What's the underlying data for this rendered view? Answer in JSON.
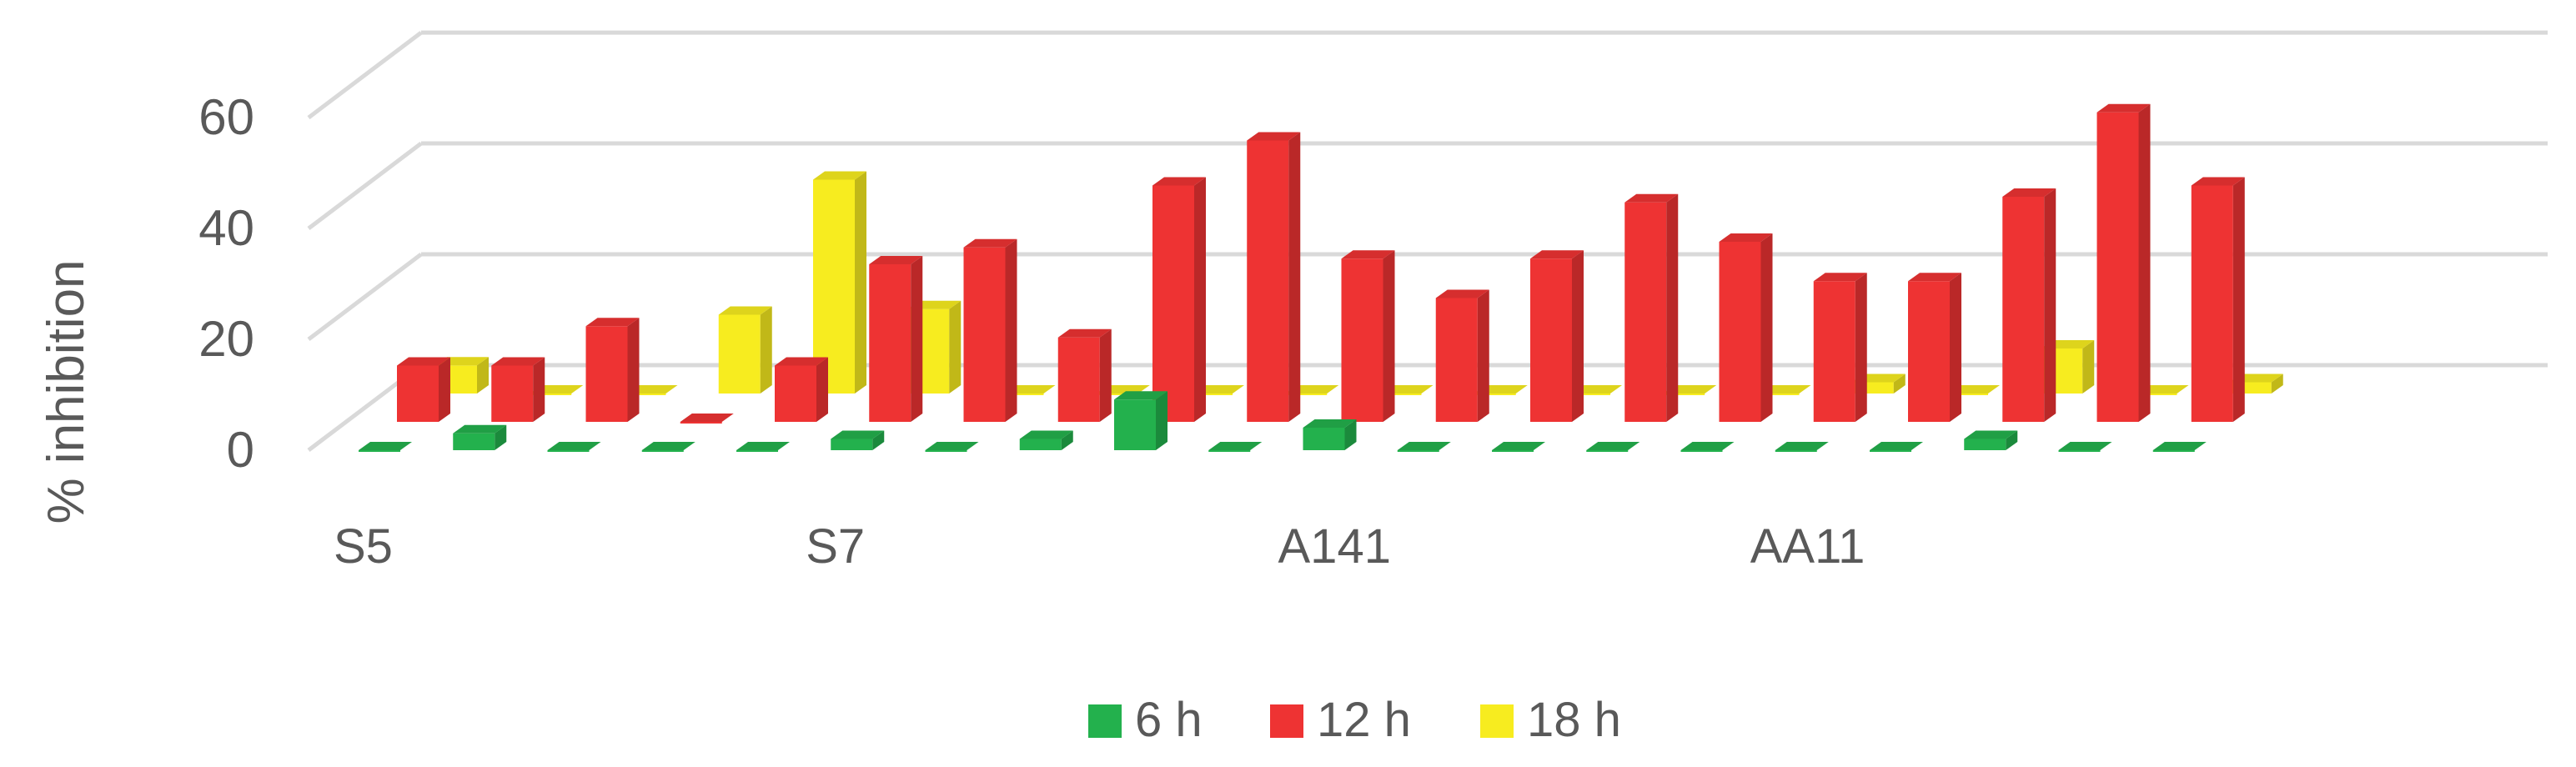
{
  "chart_data": {
    "type": "bar",
    "variant": "3d-clustered-column",
    "ylabel": "% inhibition",
    "ylim": [
      0,
      60
    ],
    "yticks": [
      0,
      20,
      40,
      60
    ],
    "category_labels_shown": [
      "S5",
      "S7",
      "A141",
      "AA11"
    ],
    "category_count": 20,
    "category_label_positions": [
      0,
      5,
      10,
      15
    ],
    "grid": true,
    "legend_position": "bottom",
    "series": [
      {
        "name": "6 h",
        "color": "#23b14d",
        "values": [
          0,
          3,
          0,
          0,
          0,
          2,
          0,
          2,
          9,
          0,
          4,
          0,
          0,
          0,
          0,
          0,
          0,
          2,
          0,
          0
        ]
      },
      {
        "name": "12 h",
        "color": "#ee3333",
        "values": [
          10,
          10,
          17,
          0,
          10,
          28,
          31,
          15,
          42,
          50,
          29,
          22,
          29,
          39,
          32,
          25,
          25,
          40,
          55,
          42
        ]
      },
      {
        "name": "18 h",
        "color": "#f7ec1f",
        "values": [
          5,
          0,
          0,
          14,
          38,
          15,
          0,
          0,
          0,
          0,
          0,
          0,
          0,
          0,
          0,
          2,
          0,
          8,
          0,
          2
        ]
      }
    ]
  },
  "legend": {
    "items": [
      {
        "label": "6 h",
        "color": "#23b14d"
      },
      {
        "label": "12 h",
        "color": "#ee3333"
      },
      {
        "label": "18 h",
        "color": "#f7ec1f"
      }
    ]
  }
}
